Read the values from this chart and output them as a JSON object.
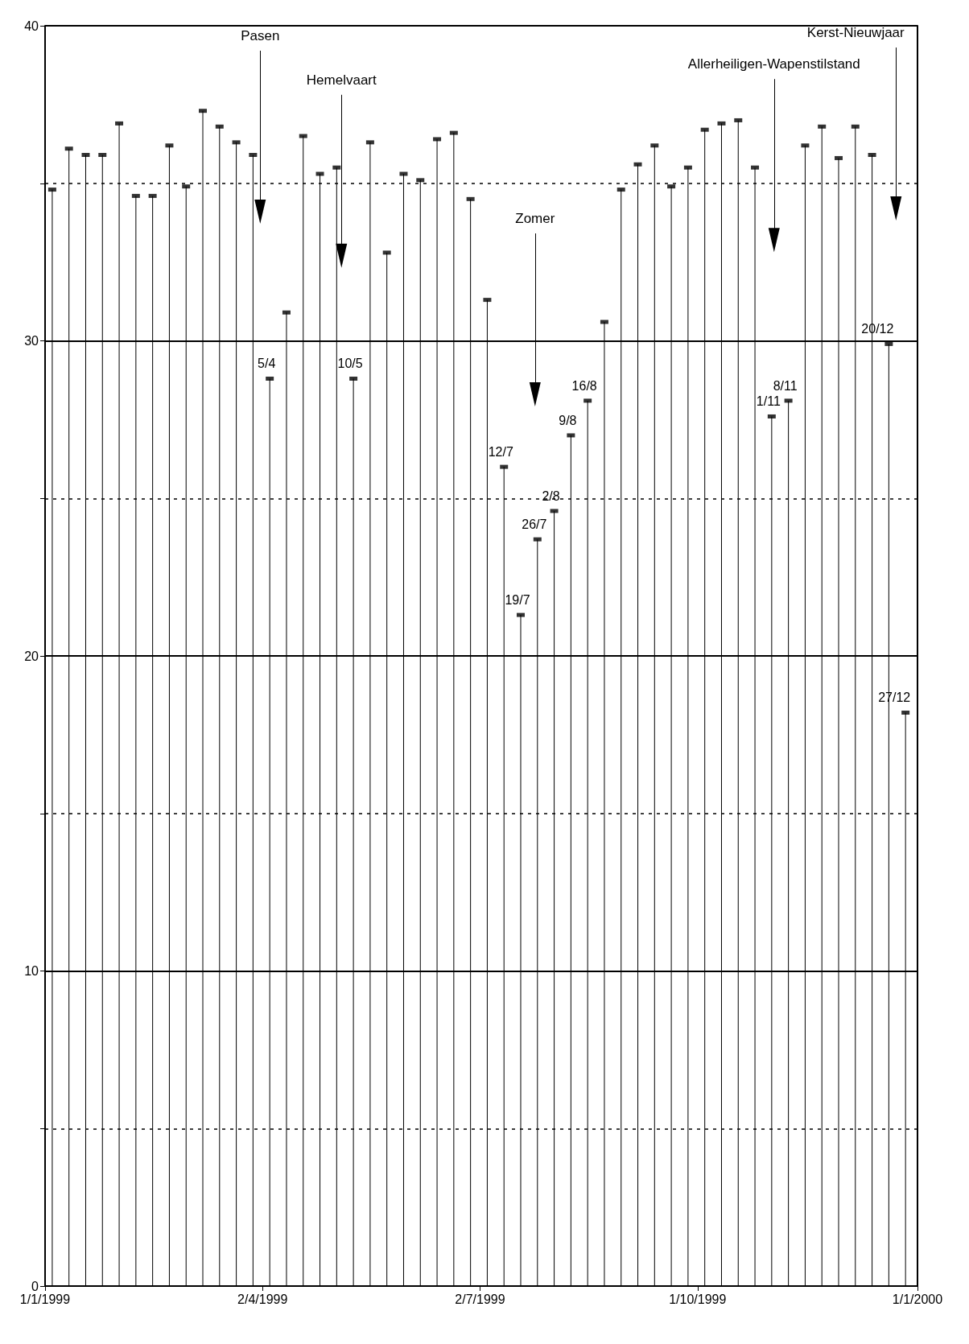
{
  "chart_data": {
    "type": "lollipop",
    "x": [
      "1999-01-04",
      "1999-01-11",
      "1999-01-18",
      "1999-01-25",
      "1999-02-01",
      "1999-02-08",
      "1999-02-15",
      "1999-02-22",
      "1999-03-01",
      "1999-03-08",
      "1999-03-15",
      "1999-03-22",
      "1999-03-29",
      "1999-04-05",
      "1999-04-12",
      "1999-04-19",
      "1999-04-26",
      "1999-05-03",
      "1999-05-10",
      "1999-05-17",
      "1999-05-24",
      "1999-05-31",
      "1999-06-07",
      "1999-06-14",
      "1999-06-21",
      "1999-06-28",
      "1999-07-05",
      "1999-07-12",
      "1999-07-19",
      "1999-07-26",
      "1999-08-02",
      "1999-08-09",
      "1999-08-16",
      "1999-08-23",
      "1999-08-30",
      "1999-09-06",
      "1999-09-13",
      "1999-09-20",
      "1999-09-27",
      "1999-10-04",
      "1999-10-11",
      "1999-10-18",
      "1999-10-25",
      "1999-11-01",
      "1999-11-08",
      "1999-11-15",
      "1999-11-22",
      "1999-11-29",
      "1999-12-06",
      "1999-12-13",
      "1999-12-20",
      "1999-12-27"
    ],
    "values": [
      34.8,
      36.1,
      35.9,
      35.9,
      36.9,
      34.6,
      34.6,
      36.2,
      34.9,
      37.3,
      36.8,
      36.3,
      35.9,
      28.8,
      30.9,
      36.5,
      35.3,
      35.5,
      28.8,
      36.3,
      32.8,
      35.3,
      35.1,
      36.4,
      36.6,
      34.5,
      31.3,
      26.0,
      21.3,
      23.7,
      24.6,
      27.0,
      28.1,
      30.6,
      34.8,
      35.6,
      36.2,
      34.9,
      35.5,
      36.7,
      36.9,
      37.0,
      35.5,
      27.6,
      28.1,
      36.2,
      36.8,
      35.8,
      36.8,
      35.9,
      29.9,
      18.2
    ],
    "color": "#000000",
    "xlim": [
      "1999-01-01",
      "2000-01-01"
    ],
    "xticks": [
      {
        "value": "1999-01-01",
        "label": "1/1/1999"
      },
      {
        "value": "1999-04-02",
        "label": "2/4/1999"
      },
      {
        "value": "1999-07-02",
        "label": "2/7/1999"
      },
      {
        "value": "1999-10-01",
        "label": "1/10/1999"
      },
      {
        "value": "2000-01-01",
        "label": "1/1/2000"
      }
    ],
    "ylim": [
      0,
      40
    ],
    "yticks": [
      0,
      {
        "value": 5,
        "label": null
      },
      10,
      {
        "value": 15,
        "label": null
      },
      20,
      {
        "value": 25,
        "label": null
      },
      30,
      {
        "value": 35,
        "label": null
      },
      40
    ],
    "grid": "y",
    "annotations": [
      {
        "text": "Pasen",
        "x": "1999-04-01",
        "y": 34.1
      },
      {
        "text": "Hemelvaart",
        "x": "1999-05-05",
        "y": 32.7
      },
      {
        "text": "Zomer",
        "x": "1999-07-25",
        "y": 28.3
      },
      {
        "text": "Allerheiligen-Wapenstilstand",
        "x": "1999-11-02",
        "y": 33.2
      },
      {
        "text": "Kerst-Nieuwjaar",
        "x": "1999-12-23",
        "y": 34.2
      },
      {
        "text": "5/4",
        "x": "1999-04-05",
        "y": 28.8
      },
      {
        "text": "10/5",
        "x": "1999-05-10",
        "y": 28.8
      },
      {
        "text": "12/7",
        "x": "1999-07-12",
        "y": 26.0
      },
      {
        "text": "19/7",
        "x": "1999-07-19",
        "y": 21.3
      },
      {
        "text": "26/7",
        "x": "1999-07-26",
        "y": 23.7
      },
      {
        "text": "2/8",
        "x": "1999-08-02",
        "y": 24.6
      },
      {
        "text": "9/8",
        "x": "1999-08-09",
        "y": 27.0
      },
      {
        "text": "16/8",
        "x": "1999-08-16",
        "y": 28.1
      },
      {
        "text": "1/11",
        "x": "1999-11-01",
        "y": 27.6
      },
      {
        "text": "8/11",
        "x": "1999-11-08",
        "y": 28.1
      },
      {
        "text": "20/12",
        "x": "1999-12-20",
        "y": 29.9
      },
      {
        "text": "27/12",
        "x": "1999-12-27",
        "y": 18.2
      }
    ]
  }
}
